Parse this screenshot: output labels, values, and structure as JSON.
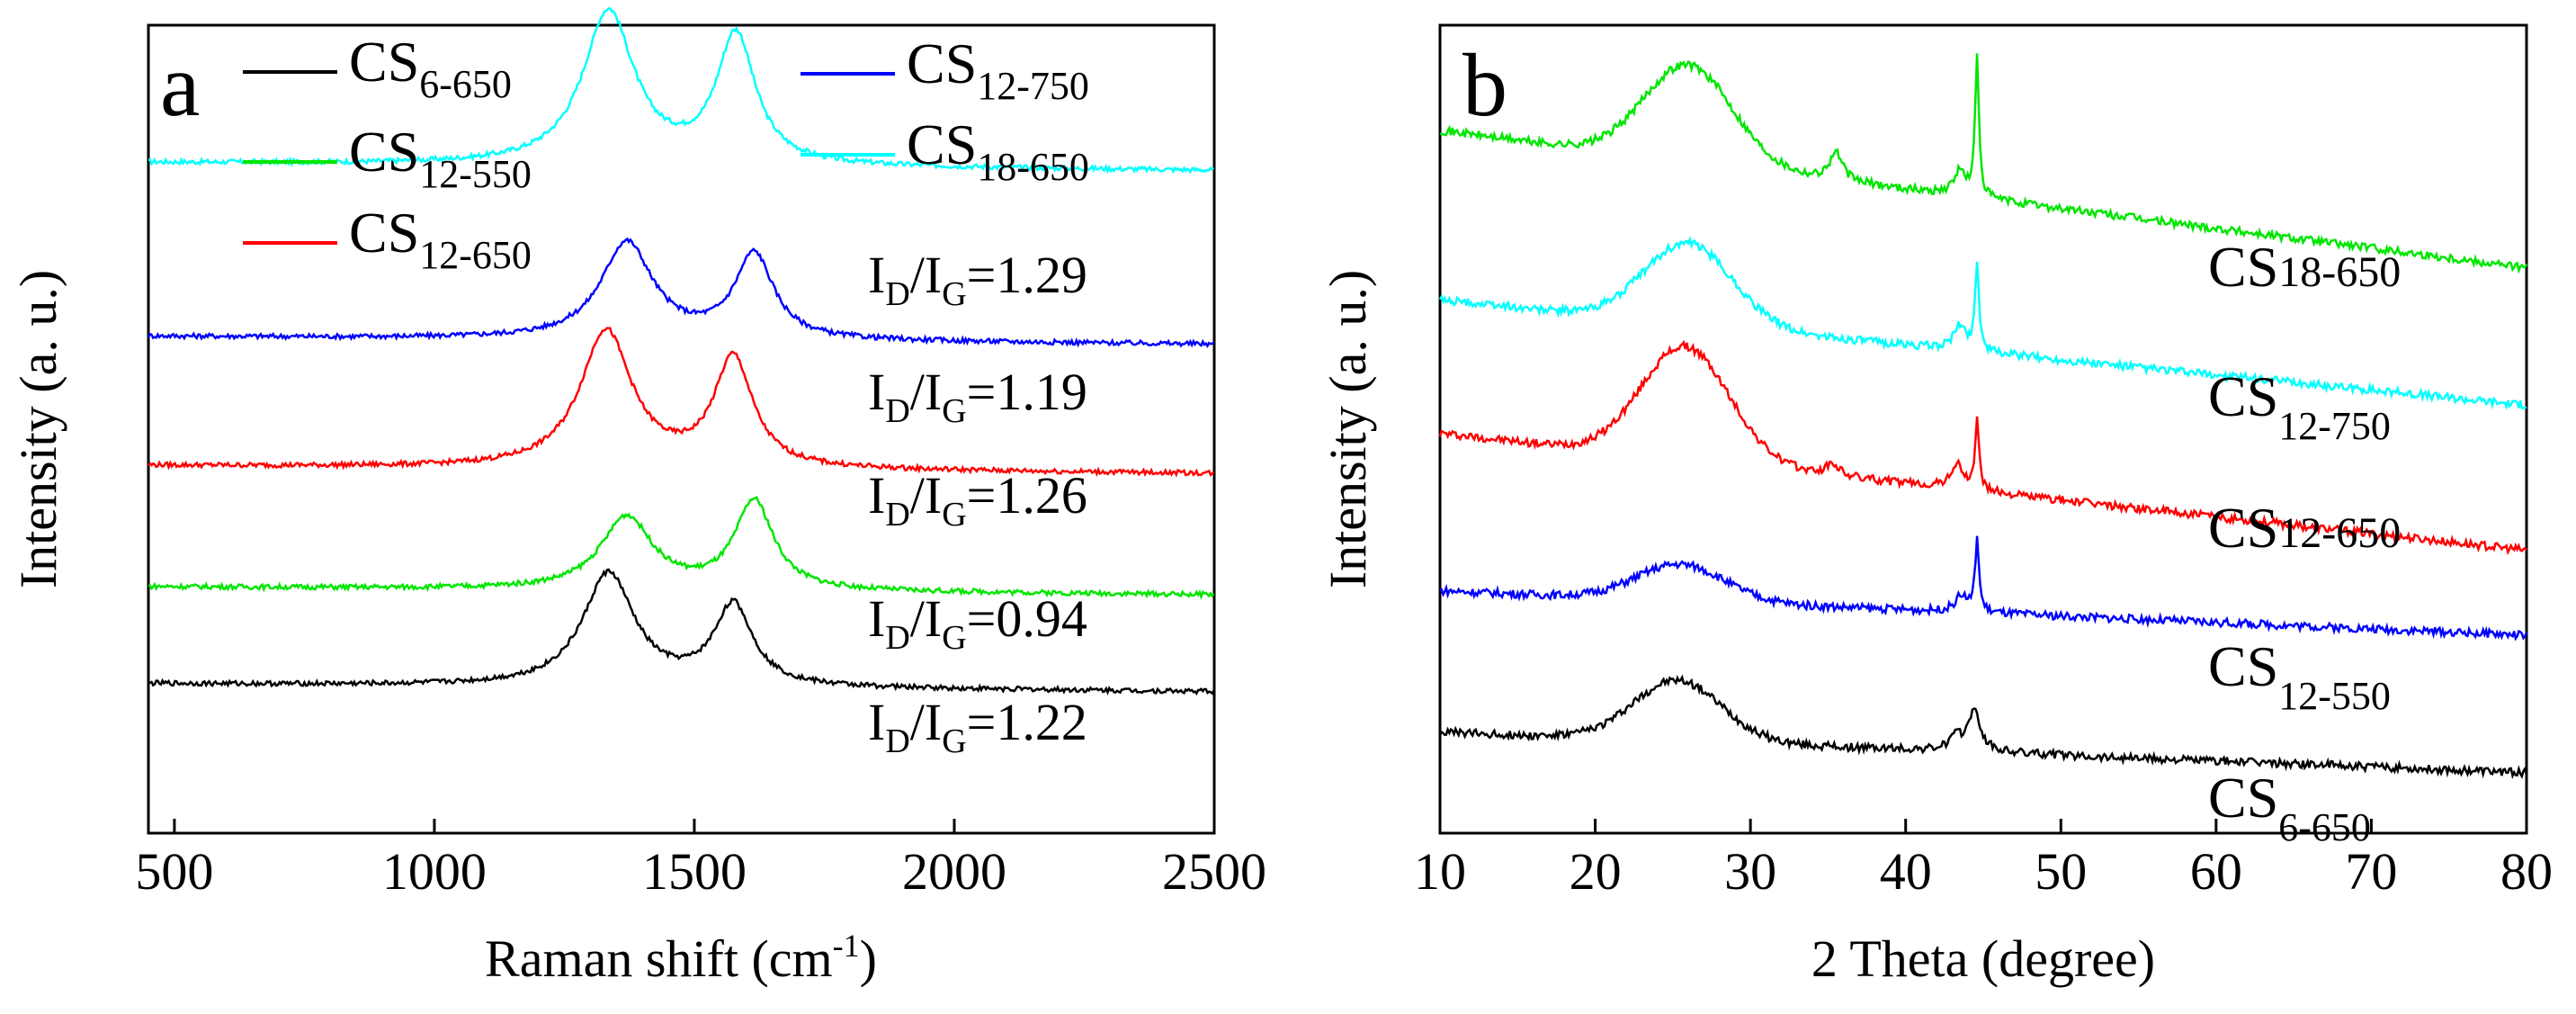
{
  "chart_data": [
    {
      "panel_label": "a",
      "type": "line",
      "xlabel_main": "Raman shift (cm",
      "xlabel_sup": "-1",
      "xlabel_close": ")",
      "ylabel": "Intensity (a. u.)",
      "xlim": [
        450,
        2500
      ],
      "xticks": [
        "500",
        "1000",
        "1500",
        "2000",
        "2500"
      ],
      "xtick_values": [
        500,
        1000,
        1500,
        2000,
        2500
      ],
      "legend": [
        {
          "base": "CS",
          "sub": "6-650",
          "color": "#000000"
        },
        {
          "base": "CS",
          "sub": "12-550",
          "color": "#00e600"
        },
        {
          "base": "CS",
          "sub": "12-650",
          "color": "#ff0000"
        },
        {
          "base": "CS",
          "sub": "12-750",
          "color": "#0000ff"
        },
        {
          "base": "CS",
          "sub": "18-650",
          "color": "#00ffff"
        }
      ],
      "series": [
        {
          "name": "CS18-650",
          "color": "#00ffff",
          "baseline": 0.83,
          "d_pos": 1335,
          "d_h": 0.19,
          "g_pos": 1580,
          "g_h": 0.16,
          "ratio_label": "1.29"
        },
        {
          "name": "CS12-750",
          "color": "#0000ff",
          "baseline": 0.615,
          "d_pos": 1370,
          "d_h": 0.12,
          "g_pos": 1615,
          "g_h": 0.105,
          "ratio_label": "1.19"
        },
        {
          "name": "CS12-650",
          "color": "#ff0000",
          "baseline": 0.455,
          "d_pos": 1330,
          "d_h": 0.17,
          "g_pos": 1575,
          "g_h": 0.135,
          "ratio_label": "1.26"
        },
        {
          "name": "CS12-550",
          "color": "#00e600",
          "baseline": 0.305,
          "d_pos": 1370,
          "d_h": 0.09,
          "g_pos": 1615,
          "g_h": 0.11,
          "ratio_label": "0.94"
        },
        {
          "name": "CS6-650",
          "color": "#000000",
          "baseline": 0.185,
          "d_pos": 1335,
          "d_h": 0.14,
          "g_pos": 1575,
          "g_h": 0.1,
          "ratio_label": "1.22"
        }
      ],
      "ratio_prefix": "I",
      "ratio_sub_d": "D",
      "ratio_slash": "/I",
      "ratio_sub_g": "G",
      "ratio_eq": "="
    },
    {
      "panel_label": "b",
      "type": "line",
      "xlabel": "2 Theta (degree)",
      "ylabel": "Intensity (a. u.)",
      "xlim": [
        10,
        80
      ],
      "xticks": [
        "10",
        "20",
        "30",
        "40",
        "50",
        "60",
        "70",
        "80"
      ],
      "xtick_values": [
        10,
        20,
        30,
        40,
        50,
        60,
        70,
        80
      ],
      "series": [
        {
          "name": "CS18-650",
          "color": "#00e600",
          "start": 0.87,
          "end": 0.7,
          "broad_pos": 26,
          "broad_h": 0.12,
          "peaks": [
            [
              35.5,
              0.035
            ],
            [
              43.5,
              0.03
            ],
            [
              44.6,
              0.17
            ]
          ],
          "label_base": "CS",
          "label_sub": "18-650"
        },
        {
          "name": "CS12-750",
          "color": "#00ffff",
          "start": 0.66,
          "end": 0.53,
          "broad_pos": 26,
          "broad_h": 0.1,
          "peaks": [
            [
              43.5,
              0.03
            ],
            [
              44.6,
              0.11
            ]
          ],
          "label_base": "CS",
          "label_sub": "12-750"
        },
        {
          "name": "CS12-650",
          "color": "#ff0000",
          "start": 0.495,
          "end": 0.35,
          "broad_pos": 25.8,
          "broad_h": 0.14,
          "peaks": [
            [
              35.3,
              0.015
            ],
            [
              43.3,
              0.03
            ],
            [
              44.6,
              0.09
            ]
          ],
          "label_base": "CS",
          "label_sub": "12-650"
        },
        {
          "name": "CS12-550",
          "color": "#0000ff",
          "start": 0.3,
          "end": 0.245,
          "broad_pos": 25.5,
          "broad_h": 0.045,
          "peaks": [
            [
              43.6,
              0.02
            ],
            [
              44.6,
              0.09
            ]
          ],
          "label_base": "CS",
          "label_sub": "12-550"
        },
        {
          "name": "CS6-650",
          "color": "#000000",
          "start": 0.125,
          "end": 0.075,
          "broad_pos": 25.3,
          "broad_h": 0.075,
          "peaks": [
            [
              43.2,
              0.015
            ],
            [
              44.4,
              0.05
            ]
          ],
          "label_base": "CS",
          "label_sub": "6-650"
        }
      ]
    }
  ]
}
